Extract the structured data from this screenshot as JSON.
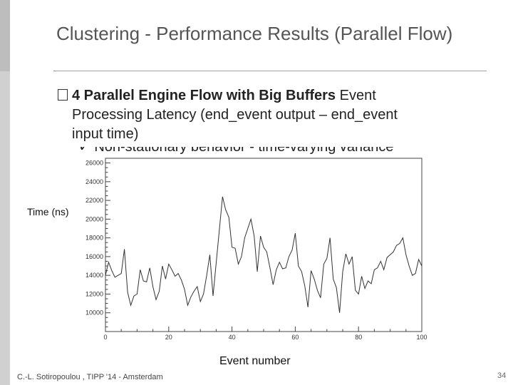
{
  "slide": {
    "title": "Clustering - Performance Results (Parallel Flow)",
    "bullet_marker": "",
    "bullet_bold": "4 Parallel Engine Flow with Big Buffers",
    "bullet_rest": " Event",
    "bullet_line2": "Processing Latency (end_event output – end_event",
    "bullet_line3": "input time)",
    "clipped_line": "✓  Non-stationary behavior - time-varying variance",
    "footer": "C.-L. Sotiropoulou , TIPP '14 - Amsterdam",
    "page_number": "34"
  },
  "chart_data": {
    "type": "line",
    "title": "",
    "xlabel": "Event number",
    "ylabel": "Time (ns)",
    "xlim": [
      0,
      100
    ],
    "ylim": [
      8000,
      26500
    ],
    "x_ticks": [
      0,
      20,
      40,
      60,
      80,
      100
    ],
    "y_ticks": [
      10000,
      12000,
      14000,
      16000,
      18000,
      20000,
      22000,
      24000,
      26000
    ],
    "grid": false,
    "series": [
      {
        "name": "",
        "x": [
          0,
          1,
          2,
          3,
          4,
          5,
          6,
          7,
          8,
          9,
          10,
          11,
          12,
          13,
          14,
          15,
          16,
          17,
          18,
          19,
          20,
          21,
          22,
          23,
          24,
          25,
          26,
          27,
          28,
          29,
          30,
          31,
          32,
          33,
          34,
          35,
          36,
          37,
          38,
          39,
          40,
          41,
          42,
          43,
          44,
          45,
          46,
          47,
          48,
          49,
          50,
          51,
          52,
          53,
          54,
          55,
          56,
          57,
          58,
          59,
          60,
          61,
          62,
          63,
          64,
          65,
          66,
          67,
          68,
          69,
          70,
          71,
          72,
          73,
          74,
          75,
          76,
          77,
          78,
          79,
          80,
          81,
          82,
          83,
          84,
          85,
          86,
          87,
          88,
          89,
          90,
          91,
          92,
          93,
          94,
          95,
          96,
          97,
          98,
          99,
          100
        ],
        "values": [
          14000,
          15400,
          14500,
          13800,
          14000,
          14200,
          16800,
          12200,
          10800,
          11800,
          12000,
          14600,
          13400,
          13300,
          14800,
          12800,
          11400,
          12300,
          15000,
          13600,
          15200,
          14600,
          13900,
          14200,
          13500,
          12500,
          10800,
          11700,
          12300,
          12800,
          11200,
          12000,
          14000,
          16200,
          11800,
          15300,
          18800,
          22400,
          21000,
          20200,
          17000,
          16900,
          15200,
          16000,
          18000,
          19000,
          20000,
          18200,
          14400,
          18200,
          17000,
          16500,
          14800,
          13000,
          14600,
          15400,
          14700,
          14800,
          16000,
          16700,
          18500,
          15000,
          14400,
          12900,
          10600,
          14500,
          13600,
          12400,
          11600,
          15200,
          15800,
          18000,
          13600,
          12700,
          10000,
          14400,
          16300,
          15200,
          16000,
          12400,
          12000,
          13900,
          12600,
          13400,
          13100,
          14600,
          14800,
          15500,
          14600,
          15900,
          16200,
          16500,
          17200,
          17400,
          18000,
          16200,
          15000,
          14000,
          14200,
          15700,
          15000
        ]
      }
    ]
  }
}
